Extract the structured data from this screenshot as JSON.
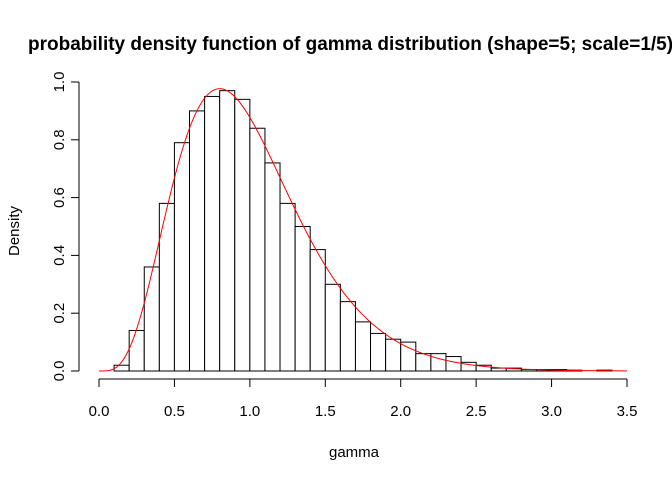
{
  "chart_data": {
    "type": "bar",
    "title": "probability density function of gamma distribution (shape=5; scale=1/5)",
    "xlabel": "gamma",
    "ylabel": "Density",
    "xlim": [
      0,
      3.5
    ],
    "ylim": [
      0,
      1.0
    ],
    "xticks": [
      "0.0",
      "0.5",
      "1.0",
      "1.5",
      "2.0",
      "2.5",
      "3.0",
      "3.5"
    ],
    "yticks": [
      "0.0",
      "0.2",
      "0.4",
      "0.6",
      "0.8",
      "1.0"
    ],
    "bin_width": 0.1,
    "bins": [
      {
        "x0": 0.0,
        "density": 0.0
      },
      {
        "x0": 0.1,
        "density": 0.02
      },
      {
        "x0": 0.2,
        "density": 0.14
      },
      {
        "x0": 0.3,
        "density": 0.36
      },
      {
        "x0": 0.4,
        "density": 0.58
      },
      {
        "x0": 0.5,
        "density": 0.79
      },
      {
        "x0": 0.6,
        "density": 0.9
      },
      {
        "x0": 0.7,
        "density": 0.95
      },
      {
        "x0": 0.8,
        "density": 0.97
      },
      {
        "x0": 0.9,
        "density": 0.94
      },
      {
        "x0": 1.0,
        "density": 0.84
      },
      {
        "x0": 1.1,
        "density": 0.72
      },
      {
        "x0": 1.2,
        "density": 0.58
      },
      {
        "x0": 1.3,
        "density": 0.5
      },
      {
        "x0": 1.4,
        "density": 0.42
      },
      {
        "x0": 1.5,
        "density": 0.3
      },
      {
        "x0": 1.6,
        "density": 0.24
      },
      {
        "x0": 1.7,
        "density": 0.17
      },
      {
        "x0": 1.8,
        "density": 0.13
      },
      {
        "x0": 1.9,
        "density": 0.11
      },
      {
        "x0": 2.0,
        "density": 0.1
      },
      {
        "x0": 2.1,
        "density": 0.06
      },
      {
        "x0": 2.2,
        "density": 0.06
      },
      {
        "x0": 2.3,
        "density": 0.05
      },
      {
        "x0": 2.4,
        "density": 0.03
      },
      {
        "x0": 2.5,
        "density": 0.02
      },
      {
        "x0": 2.6,
        "density": 0.01
      },
      {
        "x0": 2.7,
        "density": 0.01
      },
      {
        "x0": 2.8,
        "density": 0.005
      },
      {
        "x0": 2.9,
        "density": 0.005
      },
      {
        "x0": 3.0,
        "density": 0.005
      },
      {
        "x0": 3.1,
        "density": 0.003
      },
      {
        "x0": 3.2,
        "density": 0.0
      },
      {
        "x0": 3.3,
        "density": 0.003
      }
    ],
    "density_curve": {
      "color": "#ff0000",
      "shape": 5,
      "rate": 5,
      "x_range": [
        0.0,
        3.5
      ]
    },
    "bar_fill": "#ffffff",
    "bar_stroke": "#000000",
    "grid": false,
    "legend": "none"
  }
}
